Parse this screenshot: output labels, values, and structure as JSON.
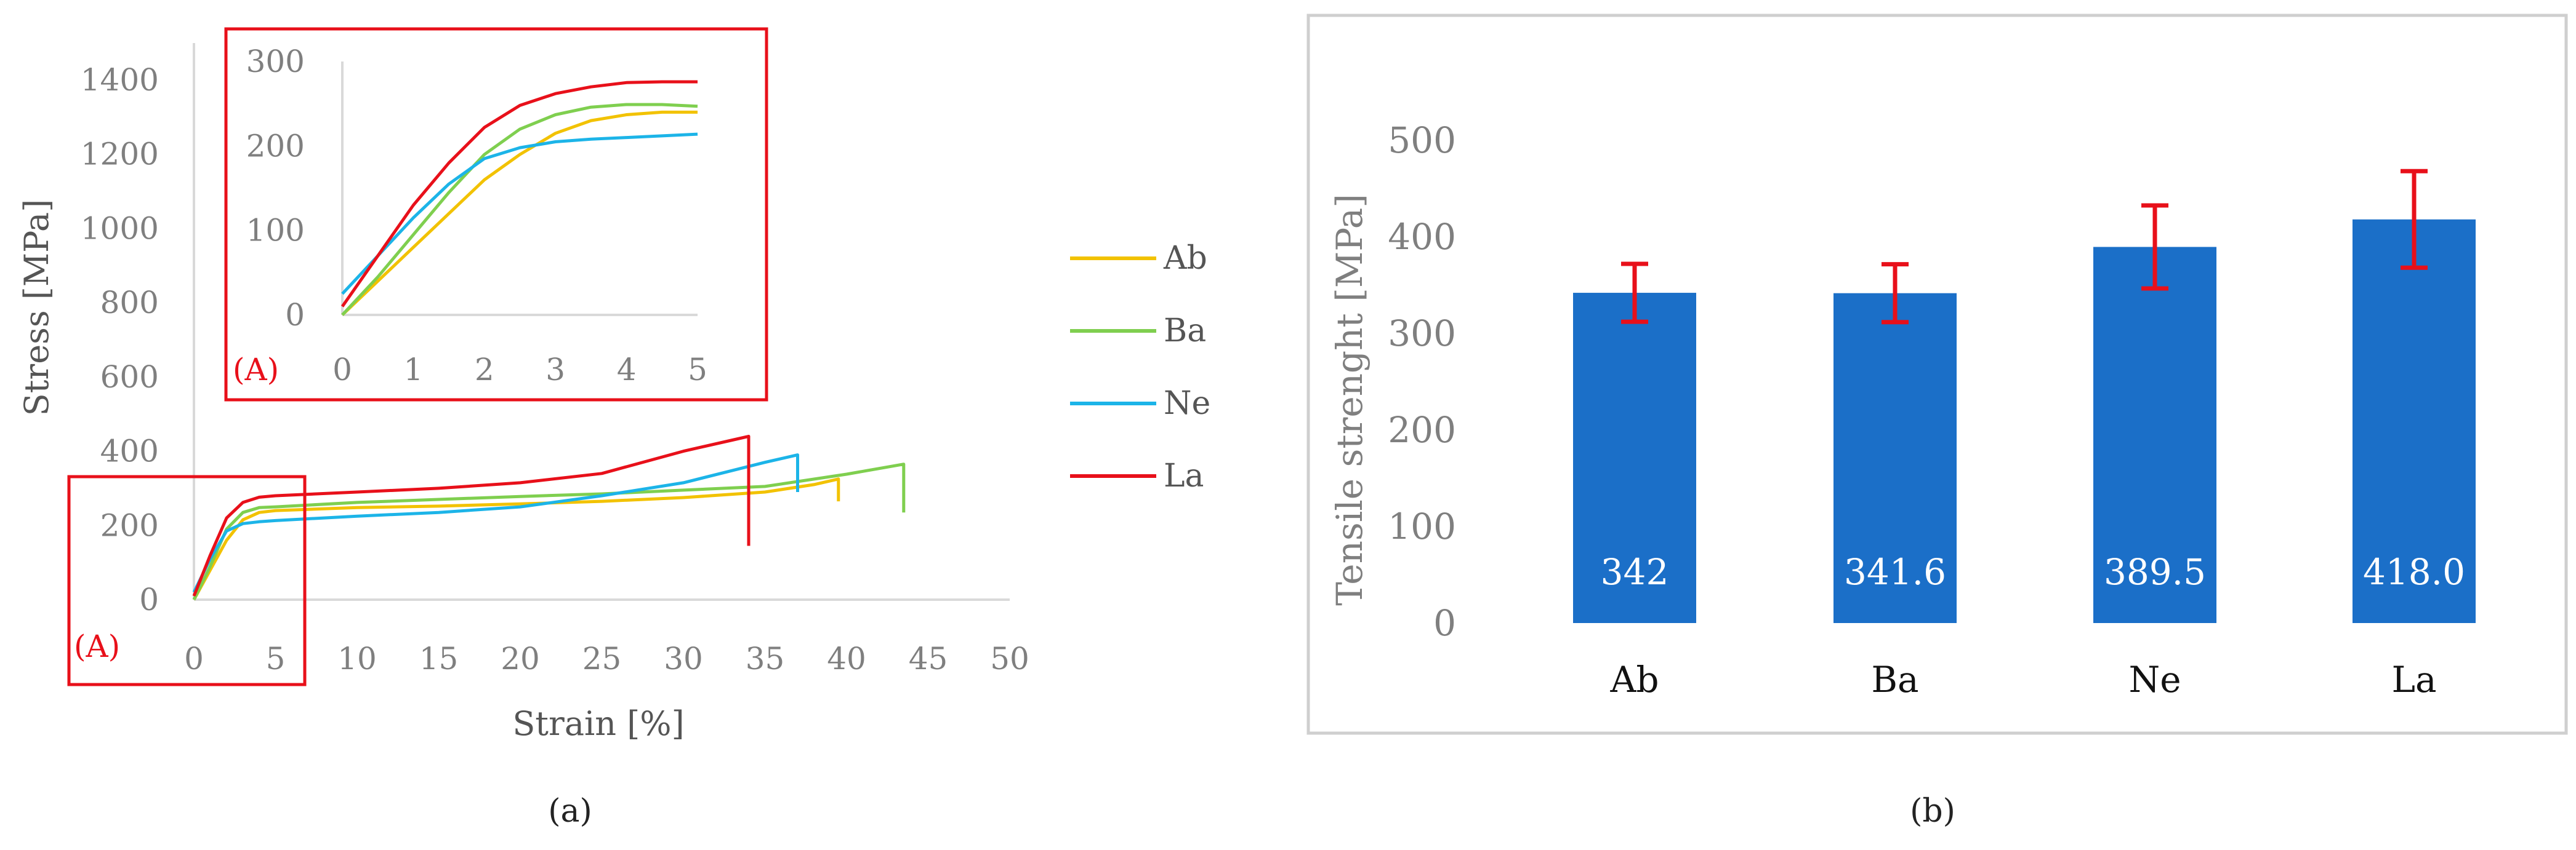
{
  "chart_data": [
    {
      "type": "line",
      "panel_label": "(a)",
      "ylabel": "Stress [MPa]",
      "xlabel": "Strain [%]",
      "xlim": [
        0,
        50
      ],
      "ylim": [
        0,
        1400
      ],
      "x_ticks": [
        "0",
        "5",
        "10",
        "15",
        "20",
        "25",
        "30",
        "35",
        "40",
        "45",
        "50"
      ],
      "y_ticks": [
        "0",
        "200",
        "400",
        "600",
        "800",
        "1000",
        "1200",
        "1400"
      ],
      "zoom_box_label": "(A)",
      "legend": "right",
      "series": [
        {
          "name": "Ab",
          "color": "#f2c200",
          "points": [
            [
              0,
              0
            ],
            [
              1,
              80
            ],
            [
              2,
              160
            ],
            [
              3,
              215
            ],
            [
              4,
              235
            ],
            [
              5,
              240
            ],
            [
              10,
              248
            ],
            [
              15,
              252
            ],
            [
              20,
              258
            ],
            [
              25,
              265
            ],
            [
              30,
              275
            ],
            [
              35,
              290
            ],
            [
              38,
              310
            ],
            [
              39.5,
              325
            ],
            [
              39.5,
              265
            ]
          ]
        },
        {
          "name": "Ba",
          "color": "#7fcf4f",
          "points": [
            [
              0,
              0
            ],
            [
              1,
              90
            ],
            [
              2,
              190
            ],
            [
              3,
              235
            ],
            [
              4,
              248
            ],
            [
              5,
              250
            ],
            [
              10,
              262
            ],
            [
              15,
              270
            ],
            [
              20,
              278
            ],
            [
              25,
              285
            ],
            [
              30,
              295
            ],
            [
              35,
              305
            ],
            [
              40,
              338
            ],
            [
              43.5,
              365
            ],
            [
              43.5,
              235
            ]
          ]
        },
        {
          "name": "Ne",
          "color": "#1cb4e8",
          "points": [
            [
              0,
              20
            ],
            [
              1,
              110
            ],
            [
              2,
              185
            ],
            [
              3,
              205
            ],
            [
              4,
              210
            ],
            [
              5,
              213
            ],
            [
              10,
              225
            ],
            [
              15,
              235
            ],
            [
              20,
              250
            ],
            [
              25,
              280
            ],
            [
              30,
              315
            ],
            [
              35,
              370
            ],
            [
              37,
              390
            ],
            [
              37,
              290
            ]
          ]
        },
        {
          "name": "La",
          "color": "#e8101a",
          "points": [
            [
              0,
              10
            ],
            [
              1,
              120
            ],
            [
              2,
              220
            ],
            [
              3,
              262
            ],
            [
              4,
              276
            ],
            [
              5,
              280
            ],
            [
              10,
              290
            ],
            [
              15,
              300
            ],
            [
              20,
              315
            ],
            [
              25,
              340
            ],
            [
              30,
              400
            ],
            [
              33,
              430
            ],
            [
              34,
              440
            ],
            [
              34,
              145
            ]
          ]
        }
      ],
      "inset": {
        "xlim": [
          0,
          5
        ],
        "ylim": [
          0,
          300
        ],
        "x_ticks": [
          "0",
          "1",
          "2",
          "3",
          "4",
          "5"
        ],
        "y_ticks": [
          "0",
          "100",
          "200",
          "300"
        ],
        "label": "(A)",
        "series": [
          {
            "name": "Ab",
            "points": [
              [
                0,
                0
              ],
              [
                0.5,
                40
              ],
              [
                1,
                80
              ],
              [
                1.5,
                120
              ],
              [
                2,
                160
              ],
              [
                2.5,
                190
              ],
              [
                3,
                215
              ],
              [
                3.5,
                230
              ],
              [
                4,
                237
              ],
              [
                4.5,
                240
              ],
              [
                5,
                240
              ]
            ]
          },
          {
            "name": "Ba",
            "points": [
              [
                0,
                0
              ],
              [
                0.5,
                45
              ],
              [
                1,
                95
              ],
              [
                1.5,
                145
              ],
              [
                2,
                190
              ],
              [
                2.5,
                220
              ],
              [
                3,
                237
              ],
              [
                3.5,
                246
              ],
              [
                4,
                249
              ],
              [
                4.5,
                249
              ],
              [
                5,
                247
              ]
            ]
          },
          {
            "name": "Ne",
            "points": [
              [
                0,
                25
              ],
              [
                0.5,
                70
              ],
              [
                1,
                115
              ],
              [
                1.5,
                155
              ],
              [
                2,
                185
              ],
              [
                2.5,
                198
              ],
              [
                3,
                205
              ],
              [
                3.5,
                208
              ],
              [
                4,
                210
              ],
              [
                4.5,
                212
              ],
              [
                5,
                214
              ]
            ]
          },
          {
            "name": "La",
            "points": [
              [
                0,
                10
              ],
              [
                0.5,
                70
              ],
              [
                1,
                130
              ],
              [
                1.5,
                180
              ],
              [
                2,
                222
              ],
              [
                2.5,
                248
              ],
              [
                3,
                262
              ],
              [
                3.5,
                270
              ],
              [
                4,
                275
              ],
              [
                4.5,
                276
              ],
              [
                5,
                276
              ]
            ]
          }
        ]
      }
    },
    {
      "type": "bar",
      "panel_label": "(b)",
      "ylabel": "Tensile strenght  [MPa]",
      "categories": [
        "Ab",
        "Ba",
        "Ne",
        "La"
      ],
      "values": [
        342,
        341.6,
        389.5,
        418.0
      ],
      "value_labels": [
        "342",
        "341.6",
        "389.5",
        "418.0"
      ],
      "errors": [
        30,
        30,
        43,
        50
      ],
      "ylim": [
        0,
        500
      ],
      "y_ticks": [
        "0",
        "100",
        "200",
        "300",
        "400",
        "500"
      ],
      "bar_color": "#1b6fc8",
      "error_color": "#e8101a"
    }
  ]
}
